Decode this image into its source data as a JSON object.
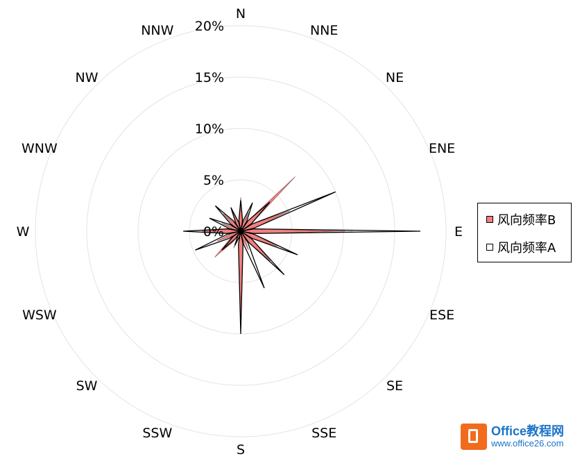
{
  "chart_data": {
    "type": "radar",
    "directions": [
      "N",
      "NNE",
      "NE",
      "ENE",
      "E",
      "ESE",
      "SE",
      "SSE",
      "S",
      "SSW",
      "SW",
      "WSW",
      "W",
      "WNW",
      "NW",
      "NNW"
    ],
    "tick_labels": [
      "0%",
      "5%",
      "10%",
      "15%",
      "20%"
    ],
    "rmax": 20,
    "grid": true,
    "legend_position": "right",
    "series": [
      {
        "name": "风向频率B",
        "color": "#f08080",
        "values": [
          3.3,
          2.0,
          7.5,
          5.2,
          10.2,
          3.9,
          4.1,
          2.0,
          9.5,
          1.8,
          3.6,
          2.5,
          3.8,
          2.0,
          2.4,
          2.3
        ]
      },
      {
        "name": "风向频率A",
        "color": "#ffffff",
        "values": [
          3.0,
          3.0,
          4.0,
          10.0,
          17.5,
          6.0,
          6.0,
          6.0,
          10.0,
          1.5,
          2.6,
          4.8,
          5.6,
          3.3,
          3.5,
          2.5
        ]
      }
    ]
  },
  "watermark": {
    "title": "Office教程网",
    "url": "www.office26.com"
  }
}
